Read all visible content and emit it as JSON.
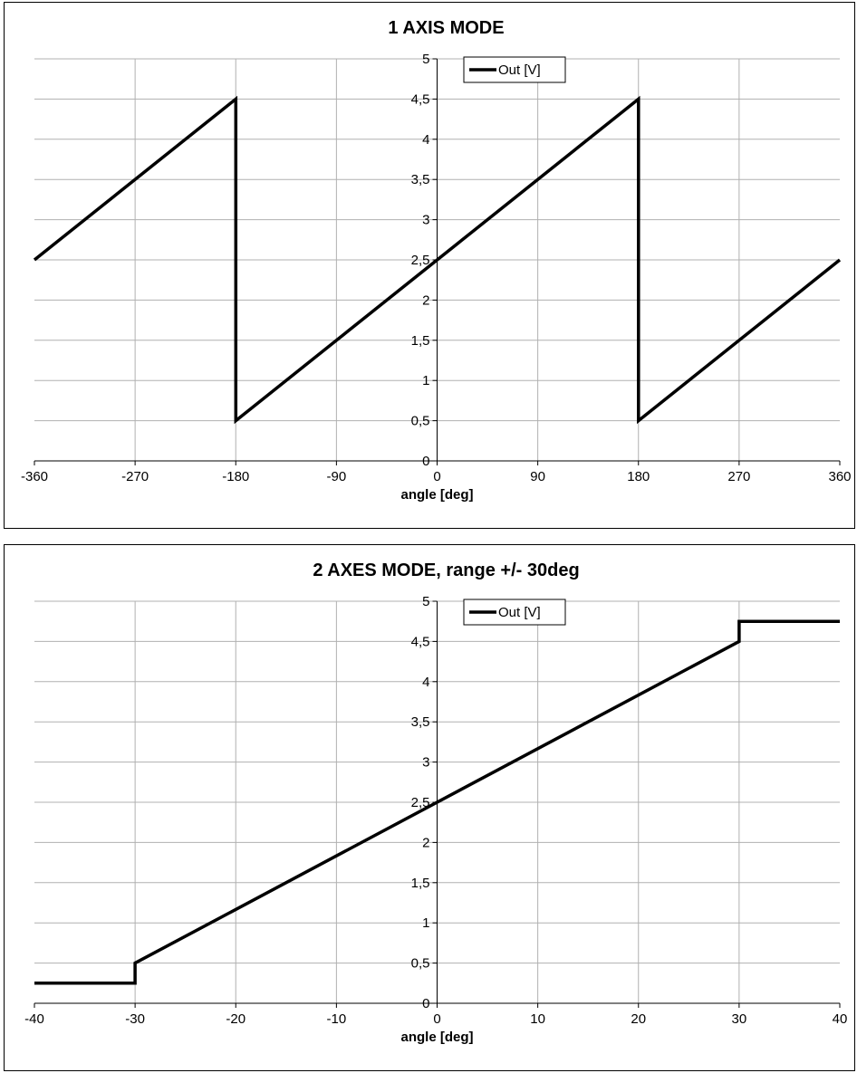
{
  "chart_data": [
    {
      "type": "line",
      "title": "1 AXIS MODE",
      "xlabel": "angle [deg]",
      "ylabel": "",
      "xlim": [
        -360,
        360
      ],
      "ylim": [
        0,
        5
      ],
      "xticks": [
        "-360",
        "-270",
        "-180",
        "-90",
        "0",
        "90",
        "180",
        "270",
        "360"
      ],
      "xtick_values": [
        -360,
        -270,
        -180,
        -90,
        0,
        90,
        180,
        270,
        360
      ],
      "yticks": [
        "0",
        "0,5",
        "1",
        "1,5",
        "2",
        "2,5",
        "3",
        "3,5",
        "4",
        "4,5",
        "5"
      ],
      "ytick_values": [
        0,
        0.5,
        1,
        1.5,
        2,
        2.5,
        3,
        3.5,
        4,
        4.5,
        5
      ],
      "grid": true,
      "legend_position": "top-center",
      "series": [
        {
          "name": "Out [V]",
          "color": "#000000",
          "x": [
            -360,
            -180,
            -180,
            180,
            180,
            360
          ],
          "y": [
            2.5,
            4.5,
            0.5,
            4.5,
            0.5,
            2.5
          ]
        }
      ]
    },
    {
      "type": "line",
      "title": "2 AXES MODE, range +/- 30deg",
      "xlabel": "angle [deg]",
      "ylabel": "",
      "xlim": [
        -40,
        40
      ],
      "ylim": [
        0,
        5
      ],
      "xticks": [
        "-40",
        "-30",
        "-20",
        "-10",
        "0",
        "10",
        "20",
        "30",
        "40"
      ],
      "xtick_values": [
        -40,
        -30,
        -20,
        -10,
        0,
        10,
        20,
        30,
        40
      ],
      "yticks": [
        "0",
        "0,5",
        "1",
        "1,5",
        "2",
        "2,5",
        "3",
        "3,5",
        "4",
        "4,5",
        "5"
      ],
      "ytick_values": [
        0,
        0.5,
        1,
        1.5,
        2,
        2.5,
        3,
        3.5,
        4,
        4.5,
        5
      ],
      "grid": true,
      "legend_position": "top-center",
      "series": [
        {
          "name": "Out [V]",
          "color": "#000000",
          "x": [
            -40,
            -30,
            -30,
            30,
            30,
            40
          ],
          "y": [
            0.25,
            0.25,
            0.5,
            4.5,
            4.75,
            4.75
          ]
        }
      ]
    }
  ]
}
